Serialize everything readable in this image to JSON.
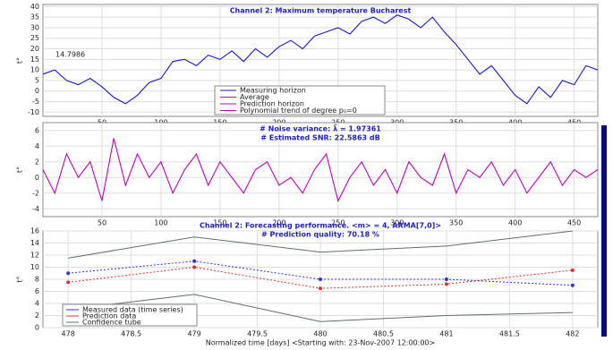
{
  "chart_data": [
    {
      "type": "line",
      "title": "Channel 2: Maximum temperature Bucharest",
      "ylabel": "t°",
      "annotation": "14.7986",
      "x": [
        0,
        10,
        20,
        30,
        40,
        50,
        60,
        70,
        80,
        90,
        100,
        110,
        120,
        130,
        140,
        150,
        160,
        170,
        180,
        190,
        200,
        210,
        220,
        230,
        240,
        250,
        260,
        270,
        280,
        290,
        300,
        310,
        320,
        330,
        340,
        350,
        360,
        370,
        380,
        390,
        400,
        410,
        420,
        430,
        440,
        450,
        460,
        470
      ],
      "series": [
        {
          "name": "Measuring horizon",
          "color": "#1818c8",
          "values": [
            8,
            10,
            5,
            3,
            6,
            2,
            -3,
            -6,
            -2,
            4,
            6,
            14,
            15,
            12,
            17,
            15,
            19,
            14,
            20,
            16,
            21,
            24,
            20,
            26,
            28,
            30,
            27,
            33,
            35,
            32,
            36,
            34,
            30,
            35,
            28,
            22,
            15,
            8,
            12,
            5,
            -2,
            -6,
            2,
            -3,
            5,
            3,
            12,
            10
          ]
        }
      ],
      "legend": [
        {
          "name": "Measuring horizon",
          "color": "#1818c8"
        },
        {
          "name": "Average",
          "color": "#c000c0"
        },
        {
          "name": "Prediction horizon",
          "color": "#c000c0"
        },
        {
          "name": "Polynomial trend of degree p₀=0",
          "color": "#c000c0"
        }
      ],
      "xlim": [
        0,
        470
      ],
      "ylim": [
        -12,
        41
      ],
      "xticks": [
        50,
        100,
        150,
        200,
        250,
        300,
        350,
        400,
        450
      ],
      "yticks": [
        -10,
        -5,
        0,
        5,
        10,
        15,
        20,
        25,
        30,
        35,
        40
      ],
      "grid": true
    },
    {
      "type": "line",
      "title": "# Noise variance: λ̂ = 1.97361",
      "subtitle": "# Estimated SNR: 22.5863 dB",
      "ylabel": "t°",
      "x": [
        0,
        10,
        20,
        30,
        40,
        50,
        60,
        70,
        80,
        90,
        100,
        110,
        120,
        130,
        140,
        150,
        160,
        170,
        180,
        190,
        200,
        210,
        220,
        230,
        240,
        250,
        260,
        270,
        280,
        290,
        300,
        310,
        320,
        330,
        340,
        350,
        360,
        370,
        380,
        390,
        400,
        410,
        420,
        430,
        440,
        450,
        460,
        470
      ],
      "series": [
        {
          "name": "Noise",
          "color": "#c000c0",
          "values": [
            1,
            -2,
            3,
            0,
            2,
            -3,
            5,
            -1,
            3,
            0,
            2,
            -2,
            1,
            3,
            -1,
            2,
            0,
            -2,
            1,
            2,
            -1,
            0,
            -2,
            1,
            3,
            -3,
            0,
            2,
            -1,
            1,
            -2,
            2,
            0,
            -1,
            3,
            -2,
            1,
            0,
            2,
            -1,
            1,
            -2,
            0,
            2,
            -1,
            1,
            0,
            1
          ]
        }
      ],
      "xlim": [
        0,
        470
      ],
      "ylim": [
        -5,
        7
      ],
      "xticks": [
        50,
        100,
        150,
        200,
        250,
        300,
        350,
        400,
        450
      ],
      "yticks": [
        -4,
        -2,
        0,
        2,
        4,
        6
      ],
      "grid": true
    },
    {
      "type": "line",
      "title": "Channel 2: Forecasting performance. <m> = 4, ARMA[7,0]>",
      "subtitle": "# Prediction quality: 70.18 %",
      "ylabel": "t°",
      "xlabel": "Normalized time [days] <Starting with: 23-Nov-2007 12:00:00>",
      "x": [
        478,
        479,
        480,
        481,
        482
      ],
      "series": [
        {
          "name": "Measured data (time series)",
          "color": "#3030e0",
          "values": [
            9,
            11,
            8,
            8,
            7
          ]
        },
        {
          "name": "Prediction data",
          "color": "#e03030",
          "values": [
            7.5,
            10,
            6.5,
            7.2,
            9.5
          ]
        },
        {
          "name": "Confidence tube",
          "color": "#607060",
          "values": [
            11.5,
            15,
            12.5,
            13.5,
            16
          ]
        },
        {
          "color": "#607060",
          "values": [
            3,
            5.5,
            1,
            2,
            2.5
          ]
        }
      ],
      "xlim": [
        477.8,
        482.2
      ],
      "ylim": [
        0,
        16
      ],
      "xticks": [
        478,
        478.5,
        479,
        479.5,
        480,
        480.5,
        481,
        481.5,
        482
      ],
      "yticks": [
        0,
        2,
        4,
        6,
        8,
        10,
        12,
        14,
        16
      ],
      "grid": true
    }
  ]
}
